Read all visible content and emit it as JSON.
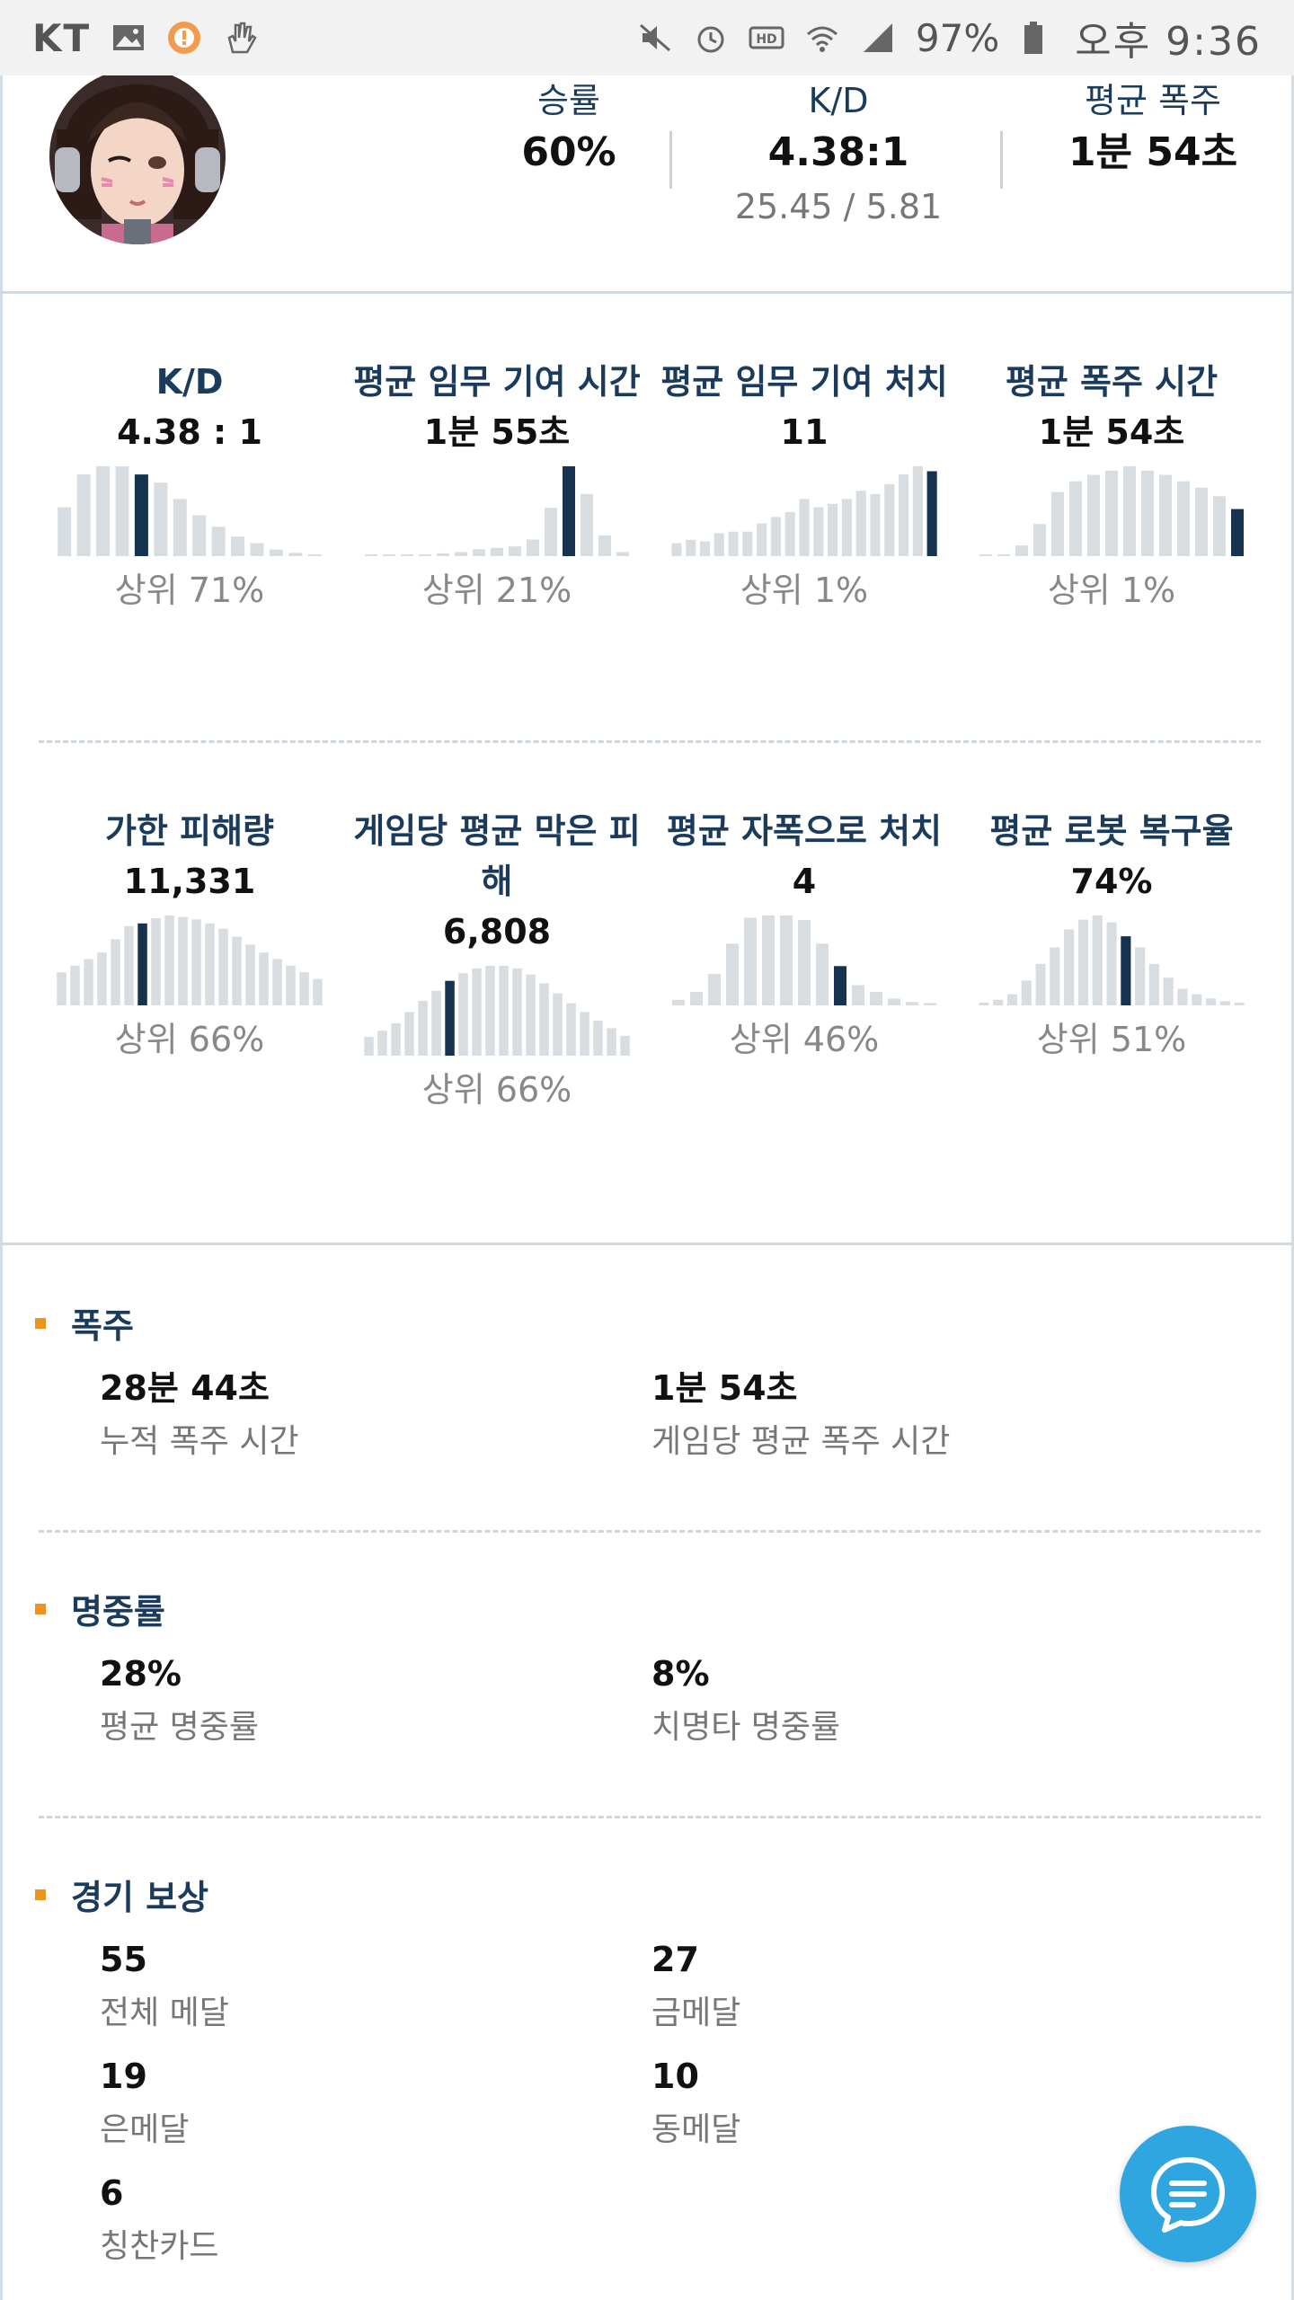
{
  "status_bar": {
    "carrier": "KT",
    "battery": "97%",
    "time": "오후 9:36",
    "icons": [
      "gallery-icon",
      "alert-icon",
      "hand-icon",
      "mute-icon",
      "alarm-icon",
      "hd-icon",
      "wifi-icon",
      "signal-icon",
      "battery-icon"
    ]
  },
  "profile": {
    "avatar": "avatar",
    "win_rate": {
      "label": "승률",
      "value": "60%"
    },
    "kd": {
      "label": "K/D",
      "value": "4.38:1",
      "sub": "25.45 / 5.81"
    },
    "avg_rampage": {
      "label": "평균 폭주",
      "value": "1분 54초"
    }
  },
  "stats": [
    {
      "title": "K/D",
      "value": "4.38 : 1",
      "rank": "상위 71%",
      "bars": [
        30,
        50,
        55,
        55,
        50,
        45,
        35,
        25,
        18,
        12,
        8,
        4,
        2,
        1
      ],
      "highlight": 4
    },
    {
      "title": "평균 임무 기여 시간",
      "value": "1분 55초",
      "rank": "상위 21%",
      "bars": [
        0,
        0,
        0,
        0,
        2,
        3,
        5,
        6,
        7,
        12,
        35,
        65,
        45,
        15,
        3
      ],
      "highlight": 11
    },
    {
      "title": "평균 임무 기여 처치",
      "value": "11",
      "rank": "상위 1%",
      "bars": [
        8,
        10,
        9,
        14,
        15,
        15,
        20,
        24,
        27,
        35,
        30,
        32,
        35,
        40,
        38,
        44,
        50,
        55,
        52
      ],
      "highlight": 18
    },
    {
      "title": "평균 폭주 시간",
      "value": "1분 54초",
      "rank": "상위 1%",
      "bars": [
        0,
        0,
        5,
        15,
        30,
        35,
        38,
        40,
        42,
        40,
        38,
        35,
        32,
        28,
        22
      ],
      "highlight": 14
    },
    {
      "title": "가한 피해량",
      "value": "11,331",
      "rank": "상위 66%",
      "bars": [
        25,
        30,
        35,
        40,
        50,
        60,
        62,
        66,
        68,
        67,
        65,
        62,
        58,
        52,
        46,
        40,
        35,
        30,
        25,
        20
      ],
      "highlight": 6
    },
    {
      "title": "게임당 평균 막은 피해",
      "value": "6,808",
      "rank": "상위 66%",
      "bars": [
        15,
        20,
        26,
        35,
        44,
        52,
        60,
        66,
        70,
        72,
        72,
        70,
        65,
        58,
        50,
        42,
        35,
        28,
        22,
        16
      ],
      "highlight": 6
    },
    {
      "title": "평균 자폭으로 처치",
      "value": "4",
      "rank": "상위 46%",
      "bars": [
        5,
        12,
        28,
        55,
        78,
        80,
        80,
        76,
        55,
        35,
        18,
        12,
        6,
        3,
        2
      ],
      "highlight": 9
    },
    {
      "title": "평균 로봇 복구율",
      "value": "74%",
      "rank": "상위 51%",
      "bars": [
        2,
        4,
        8,
        18,
        30,
        42,
        55,
        62,
        65,
        60,
        50,
        42,
        30,
        20,
        12,
        8,
        5,
        3,
        2
      ],
      "highlight": 10
    }
  ],
  "sections": [
    {
      "title": "폭주",
      "items": [
        {
          "value": "28분 44초",
          "label": "누적 폭주 시간"
        },
        {
          "value": "1분 54초",
          "label": "게임당 평균 폭주 시간"
        }
      ]
    },
    {
      "title": "명중률",
      "items": [
        {
          "value": "28%",
          "label": "평균 명중률"
        },
        {
          "value": "8%",
          "label": "치명타 명중률"
        }
      ]
    },
    {
      "title": "경기 보상",
      "items": [
        {
          "value": "55",
          "label": "전체 메달"
        },
        {
          "value": "27",
          "label": "금메달"
        },
        {
          "value": "19",
          "label": "은메달"
        },
        {
          "value": "10",
          "label": "동메달"
        },
        {
          "value": "6",
          "label": "칭찬카드"
        }
      ]
    }
  ],
  "colors": {
    "accent": "#f0931e",
    "highlight_bar": "#15324f",
    "bar": "#d8dde2",
    "fab": "#30a6e0",
    "title": "#1b3b5c"
  },
  "fab_icon": "chat-icon"
}
